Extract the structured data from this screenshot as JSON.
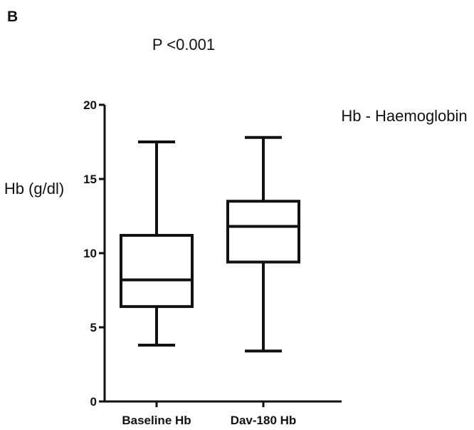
{
  "chart_data": {
    "type": "box",
    "panel_label": "B",
    "annotation": "P <0.001",
    "ylabel": "Hb (g/dl)",
    "legend_note": "Hb - Haemoglobin",
    "ylim": [
      0,
      20
    ],
    "yticks": [
      0,
      5,
      10,
      15,
      20
    ],
    "categories": [
      "Baseline Hb",
      "Dav-180 Hb"
    ],
    "boxes": [
      {
        "category": "Baseline Hb",
        "min": 3.8,
        "q1": 6.4,
        "median": 8.2,
        "q3": 11.2,
        "max": 17.5
      },
      {
        "category": "Dav-180 Hb",
        "min": 3.4,
        "q1": 9.4,
        "median": 11.8,
        "q3": 13.5,
        "max": 17.8
      }
    ],
    "grid": false
  }
}
